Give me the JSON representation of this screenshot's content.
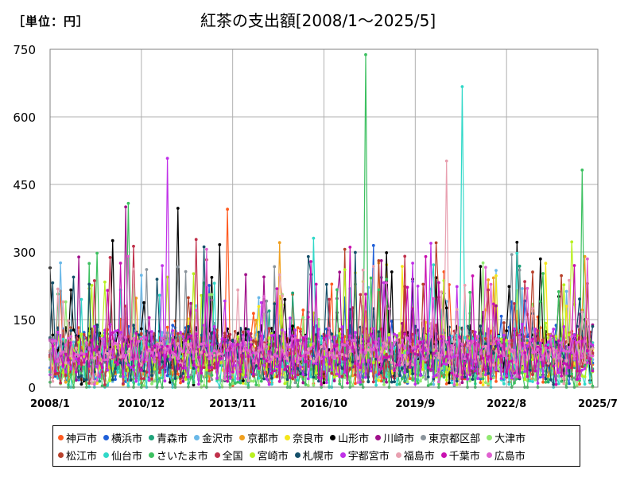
{
  "chart_data": {
    "type": "line",
    "title": "紅茶の支出額[2008/1～2025/5]",
    "unit_label": "［単位：円］",
    "x_tick_labels": [
      "2008/1",
      "2010/12",
      "2013/11",
      "2016/10",
      "2019/9",
      "2022/8",
      "2025/7"
    ],
    "y_tick_labels": [
      "0",
      "150",
      "300",
      "450",
      "600",
      "750"
    ],
    "ylim": [
      0,
      750
    ],
    "series_count_note": "20 cities, monthly values 2008/1–2025/5",
    "series": [
      {
        "name": "神戸市",
        "color": "#ff5a1f"
      },
      {
        "name": "横浜市",
        "color": "#1f5fd8"
      },
      {
        "name": "青森市",
        "color": "#1fa37a"
      },
      {
        "name": "金沢市",
        "color": "#6ab8e8"
      },
      {
        "name": "京都市",
        "color": "#f0a020"
      },
      {
        "name": "奈良市",
        "color": "#f5e61a"
      },
      {
        "name": "山形市",
        "color": "#000000"
      },
      {
        "name": "川崎市",
        "color": "#a0108a"
      },
      {
        "name": "東京都区部",
        "color": "#8a949c"
      },
      {
        "name": "大津市",
        "color": "#90e870"
      },
      {
        "name": "松江市",
        "color": "#b8402a"
      },
      {
        "name": "仙台市",
        "color": "#30d8c8"
      },
      {
        "name": "さいたま市",
        "color": "#3cc060"
      },
      {
        "name": "全国",
        "color": "#c0304a"
      },
      {
        "name": "宮崎市",
        "color": "#b8f020"
      },
      {
        "name": "札幌市",
        "color": "#15506a"
      },
      {
        "name": "宇都宮市",
        "color": "#c030e8"
      },
      {
        "name": "福島市",
        "color": "#e8a0b0"
      },
      {
        "name": "千葉市",
        "color": "#c810b0"
      },
      {
        "name": "広島市",
        "color": "#e060d0"
      }
    ],
    "peaks": [
      {
        "name": "さいたま市",
        "month": "2018/2",
        "value": 738
      },
      {
        "name": "仙台市",
        "month": "2021/3",
        "value": 667
      },
      {
        "name": "宇都宮市",
        "month": "2011/10",
        "value": 508
      },
      {
        "name": "福島市",
        "month": "2020/9",
        "value": 502
      },
      {
        "name": "さいたま市",
        "month": "2025/1",
        "value": 482
      },
      {
        "name": "さいたま市",
        "month": "2010/7",
        "value": 408
      },
      {
        "name": "川崎市",
        "month": "2010/6",
        "value": 400
      },
      {
        "name": "神戸市",
        "month": "2013/9",
        "value": 395
      },
      {
        "name": "山形市",
        "month": "2012/2",
        "value": 397
      }
    ]
  }
}
